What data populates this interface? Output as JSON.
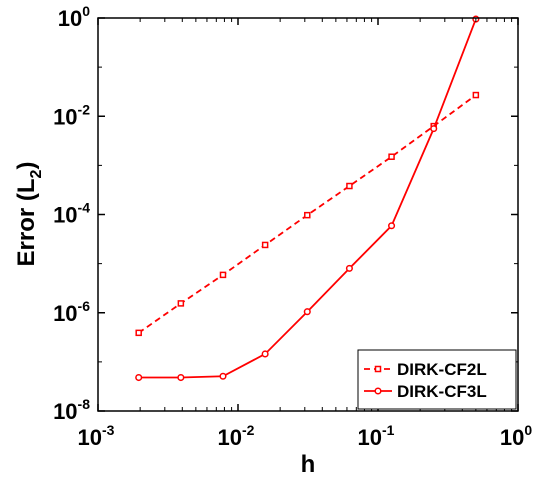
{
  "chart_data": {
    "type": "line",
    "xscale": "log",
    "yscale": "log",
    "xlim": [
      0.001,
      1
    ],
    "ylim": [
      1e-08,
      1
    ],
    "xlabel": "h",
    "ylabel_text": "Error (L",
    "ylabel_sub": "2",
    "ylabel_close": ")",
    "x_ticks": [
      {
        "base": "10",
        "exp": "-3",
        "value": 0.001
      },
      {
        "base": "10",
        "exp": "-2",
        "value": 0.01
      },
      {
        "base": "10",
        "exp": "-1",
        "value": 0.1
      },
      {
        "base": "10",
        "exp": "0",
        "value": 1
      }
    ],
    "y_ticks": [
      {
        "base": "10",
        "exp": "-8",
        "value": 1e-08
      },
      {
        "base": "10",
        "exp": "-6",
        "value": 1e-06
      },
      {
        "base": "10",
        "exp": "-4",
        "value": 0.0001
      },
      {
        "base": "10",
        "exp": "-2",
        "value": 0.01
      },
      {
        "base": "10",
        "exp": "0",
        "value": 1
      }
    ],
    "grid": false,
    "legend_position": "bottom-right",
    "color": "#ff0000",
    "series": [
      {
        "name": "DIRK-CF2L",
        "style": "dashed",
        "marker": "square",
        "x": [
          0.001953125,
          0.00390625,
          0.0078125,
          0.015625,
          0.03125,
          0.0625,
          0.125,
          0.25,
          0.5
        ],
        "y": [
          3.9e-07,
          1.55e-06,
          5.9e-06,
          2.4e-05,
          9.7e-05,
          0.00038,
          0.0015,
          0.0063,
          0.027
        ]
      },
      {
        "name": "DIRK-CF3L",
        "style": "solid",
        "marker": "circle",
        "x": [
          0.001953125,
          0.00390625,
          0.0078125,
          0.015625,
          0.03125,
          0.0625,
          0.125,
          0.25,
          0.5
        ],
        "y": [
          4.8e-08,
          4.8e-08,
          5.1e-08,
          1.45e-07,
          1.05e-06,
          8e-06,
          5.9e-05,
          0.0056,
          0.95
        ]
      }
    ]
  }
}
